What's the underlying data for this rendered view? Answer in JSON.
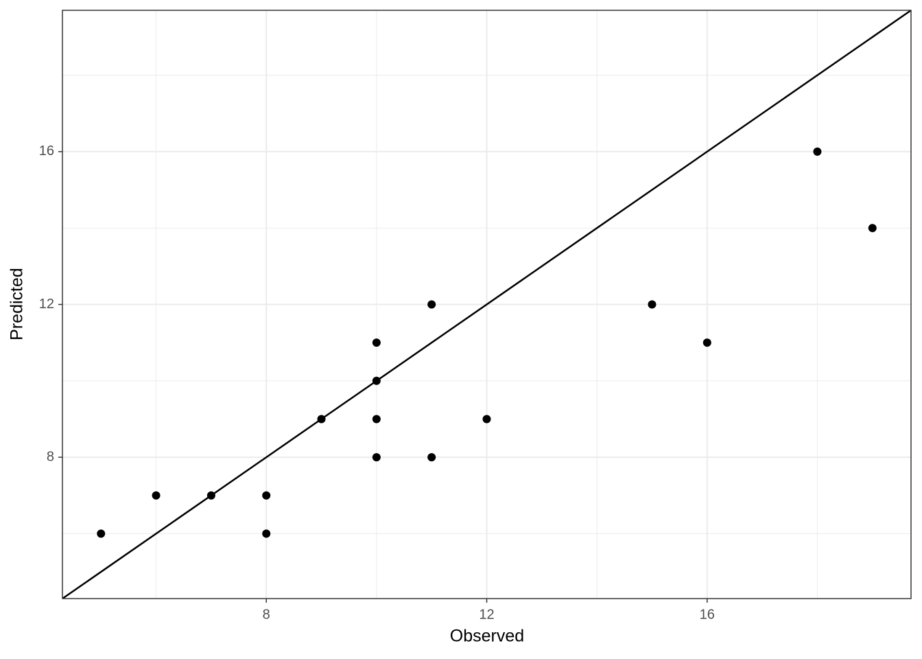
{
  "chart_data": {
    "type": "scatter",
    "x_label": "Observed",
    "y_label": "Predicted",
    "x": [
      5,
      6,
      7,
      8,
      8,
      9,
      10,
      10,
      10,
      10,
      11,
      11,
      12,
      15,
      16,
      18,
      19
    ],
    "y": [
      6,
      7,
      7,
      7,
      6,
      9,
      11,
      10,
      9,
      8,
      12,
      8,
      9,
      12,
      11,
      16,
      14
    ],
    "color": "#000000",
    "xlim": [
      4.3,
      19.7
    ],
    "ylim": [
      4.3,
      19.7
    ],
    "xticks": [
      8,
      12,
      16
    ],
    "yticks": [
      8,
      12,
      16
    ],
    "x_minor_grid": [
      6,
      10,
      14,
      18
    ],
    "y_minor_grid": [
      6,
      10,
      14,
      18
    ],
    "grid": true,
    "abline": {
      "intercept": 0,
      "slope": 1
    }
  }
}
